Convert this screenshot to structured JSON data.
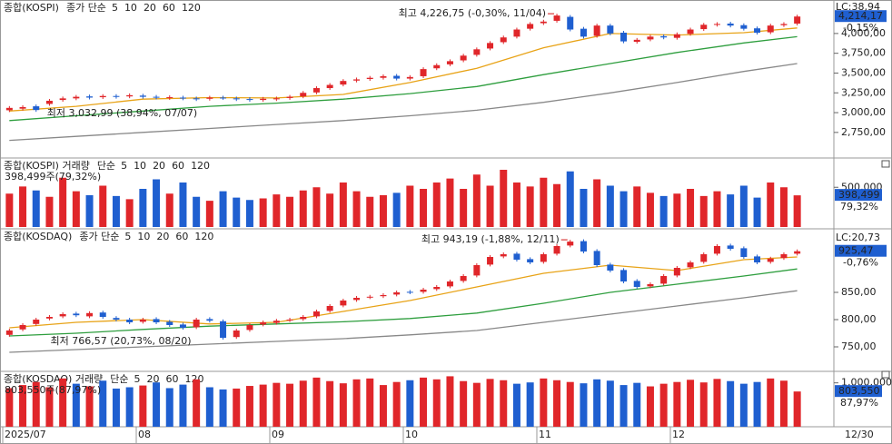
{
  "chart_data": [
    {
      "type": "candlestick",
      "title": "종합(KOSPI)",
      "subtitle": "종가 단순",
      "ma": [
        {
          "name": "5",
          "color": "#c000c0"
        },
        {
          "name": "10",
          "color": "#1a1a8c"
        },
        {
          "name": "20",
          "color": "#e8a317",
          "x": [
            0,
            5,
            10,
            15,
            20,
            25,
            30,
            35,
            40,
            45,
            50,
            55,
            59
          ],
          "values": [
            3020,
            3080,
            3170,
            3190,
            3185,
            3230,
            3380,
            3560,
            3820,
            4000,
            3980,
            4010,
            4070
          ]
        },
        {
          "name": "60",
          "color": "#2e9e3e",
          "x": [
            0,
            5,
            10,
            15,
            20,
            25,
            30,
            35,
            40,
            45,
            50,
            55,
            59
          ],
          "values": [
            2900,
            2960,
            3020,
            3080,
            3120,
            3170,
            3240,
            3330,
            3480,
            3620,
            3760,
            3880,
            3960
          ]
        },
        {
          "name": "120",
          "color": "#888888",
          "x": [
            0,
            5,
            10,
            15,
            20,
            25,
            30,
            35,
            40,
            45,
            50,
            55,
            59
          ],
          "values": [
            2650,
            2700,
            2750,
            2800,
            2850,
            2900,
            2960,
            3030,
            3130,
            3250,
            3380,
            3520,
            3620
          ]
        }
      ],
      "open": [
        3030,
        3050,
        3080,
        3110,
        3160,
        3180,
        3205,
        3195,
        3210,
        3205,
        3215,
        3200,
        3185,
        3190,
        3180,
        3175,
        3190,
        3180,
        3172,
        3160,
        3170,
        3185,
        3205,
        3255,
        3310,
        3355,
        3405,
        3425,
        3440,
        3465,
        3430,
        3460,
        3560,
        3610,
        3660,
        3730,
        3810,
        3890,
        3960,
        4060,
        4130,
        4160,
        4210,
        4060,
        3970,
        4100,
        4010,
        3895,
        3925,
        3965,
        3945,
        3995,
        4055,
        4110,
        4125,
        4105,
        4065,
        4015,
        4105,
        4125
      ],
      "close": [
        3060,
        3070,
        3032.99,
        3150,
        3180,
        3200,
        3190,
        3210,
        3200,
        3220,
        3200,
        3190,
        3195,
        3180,
        3170,
        3190,
        3185,
        3170,
        3160,
        3175,
        3180,
        3200,
        3250,
        3310,
        3350,
        3400,
        3420,
        3440,
        3460,
        3430,
        3450,
        3550,
        3600,
        3650,
        3720,
        3800,
        3880,
        3950,
        4050,
        4120,
        4150,
        4226.75,
        4050,
        3960,
        4100,
        4000,
        3900,
        3920,
        3960,
        3950,
        3990,
        4050,
        4110,
        4120,
        4100,
        4060,
        4010,
        4100,
        4120,
        4214.17
      ],
      "up_color": "#e0262a",
      "down_color": "#1f5fd0",
      "high_note": "최고 4,226,75 (-0,30%, 11/04)",
      "low_note": "최저 3,032,99 (38,94%, 07/07)",
      "last_label": "4,214,17",
      "change_label": "-0,15%",
      "lc_label": "LC:38,94",
      "ylim": [
        2450,
        4400
      ],
      "yticks": [
        {
          "value": 4000,
          "label": "4,000,00"
        },
        {
          "value": 3750,
          "label": "3,750,00"
        },
        {
          "value": 3500,
          "label": "3,500,00"
        },
        {
          "value": 3250,
          "label": "3,250,00"
        },
        {
          "value": 3000,
          "label": "3,000,00"
        },
        {
          "value": 2750,
          "label": "2,750,00"
        }
      ]
    },
    {
      "type": "bar",
      "title": "종합(KOSPI) 거래량",
      "subtitle": "단순",
      "ma": [
        {
          "name": "5",
          "color": "#c000c0"
        },
        {
          "name": "10",
          "color": "#1a1a8c"
        },
        {
          "name": "20",
          "color": "#e8a317"
        },
        {
          "name": "60",
          "color": "#2e9e3e"
        },
        {
          "name": "120",
          "color": "#888888"
        }
      ],
      "values": [
        420000,
        510000,
        460000,
        380000,
        620000,
        450000,
        400000,
        520000,
        390000,
        350000,
        480000,
        600000,
        420000,
        560000,
        380000,
        330000,
        450000,
        370000,
        340000,
        360000,
        410000,
        380000,
        460000,
        500000,
        420000,
        560000,
        450000,
        380000,
        400000,
        430000,
        520000,
        480000,
        560000,
        610000,
        480000,
        660000,
        520000,
        720000,
        560000,
        510000,
        620000,
        540000,
        700000,
        480000,
        600000,
        520000,
        450000,
        510000,
        430000,
        390000,
        420000,
        480000,
        390000,
        450000,
        410000,
        520000,
        370000,
        560000,
        500000,
        398499
      ],
      "current_note": "398,499주(79,32%)",
      "last_label": "398,499",
      "ratio_label": "79,32%",
      "ylim": [
        0,
        800000
      ],
      "yticks": [
        {
          "value": 500000,
          "label": "500,000"
        }
      ]
    },
    {
      "type": "candlestick",
      "title": "종합(KOSDAQ)",
      "subtitle": "종가 단순",
      "ma": [
        {
          "name": "5",
          "color": "#c000c0"
        },
        {
          "name": "10",
          "color": "#1a1a8c"
        },
        {
          "name": "20",
          "color": "#e8a317",
          "x": [
            0,
            5,
            10,
            15,
            20,
            25,
            30,
            35,
            40,
            45,
            50,
            55,
            59
          ],
          "values": [
            785,
            795,
            800,
            792,
            795,
            815,
            835,
            860,
            885,
            900,
            890,
            910,
            915
          ]
        },
        {
          "name": "60",
          "color": "#2e9e3e",
          "x": [
            0,
            5,
            10,
            15,
            20,
            25,
            30,
            35,
            40,
            45,
            50,
            55,
            59
          ],
          "values": [
            770,
            775,
            782,
            788,
            792,
            796,
            802,
            812,
            830,
            850,
            865,
            880,
            893
          ]
        },
        {
          "name": "120",
          "color": "#888888",
          "x": [
            0,
            5,
            10,
            15,
            20,
            25,
            30,
            35,
            40,
            45,
            50,
            55,
            59
          ],
          "values": [
            740,
            745,
            750,
            755,
            760,
            765,
            772,
            780,
            795,
            810,
            825,
            840,
            853
          ]
        }
      ],
      "open": [
        772,
        782,
        792,
        802,
        806,
        811,
        806,
        813,
        803,
        800,
        796,
        801,
        796,
        791,
        786,
        801,
        797,
        768,
        781,
        791,
        794,
        799,
        801,
        806,
        816,
        826,
        836,
        841,
        843,
        846,
        851,
        851,
        856,
        861,
        871,
        881,
        901,
        916,
        921,
        911,
        906,
        921,
        936,
        944,
        926,
        901,
        891,
        871,
        861,
        866,
        881,
        896,
        906,
        921,
        936,
        931,
        916,
        906,
        913,
        921
      ],
      "close": [
        780,
        790,
        800,
        805,
        810,
        808,
        812,
        805,
        800,
        795,
        800,
        795,
        790,
        785,
        800,
        798,
        766.57,
        780,
        790,
        795,
        798,
        800,
        805,
        815,
        825,
        835,
        840,
        842,
        845,
        850,
        850,
        855,
        860,
        870,
        880,
        900,
        915,
        920,
        910,
        905,
        920,
        935,
        943.19,
        925,
        900,
        890,
        870,
        860,
        865,
        880,
        895,
        905,
        920,
        935,
        930,
        915,
        905,
        912,
        920,
        925.47
      ],
      "up_color": "#e0262a",
      "down_color": "#1f5fd0",
      "high_note": "최고 943,19 (-1,88%, 12/11)",
      "low_note": "최저 766,57 (20,73%, 08/20)",
      "last_label": "925,47",
      "change_label": "-0,76%",
      "lc_label": "LC:20,73",
      "ylim": [
        710,
        960
      ],
      "yticks": [
        {
          "value": 850,
          "label": "850,00"
        },
        {
          "value": 800,
          "label": "800,00"
        },
        {
          "value": 750,
          "label": "750,00"
        }
      ]
    },
    {
      "type": "bar",
      "title": "종합(KOSDAQ) 거래량",
      "subtitle": "단순",
      "ma": [
        {
          "name": "5",
          "color": "#c000c0"
        },
        {
          "name": "20",
          "color": "#e8a317"
        },
        {
          "name": "60",
          "color": "#2e9e3e"
        },
        {
          "name": "120",
          "color": "#888888"
        }
      ],
      "values": [
        880000,
        950000,
        1020000,
        900000,
        1100000,
        980000,
        920000,
        1050000,
        870000,
        900000,
        940000,
        1010000,
        880000,
        960000,
        1080000,
        900000,
        850000,
        870000,
        930000,
        960000,
        1000000,
        980000,
        1050000,
        1120000,
        1040000,
        990000,
        1080000,
        1100000,
        950000,
        1020000,
        1060000,
        1120000,
        1080000,
        1150000,
        1040000,
        1000000,
        1090000,
        1060000,
        980000,
        1010000,
        1100000,
        1060000,
        1020000,
        990000,
        1080000,
        1050000,
        950000,
        1000000,
        920000,
        980000,
        1020000,
        1070000,
        1010000,
        1090000,
        1040000,
        980000,
        1020000,
        1100000,
        1050000,
        803550
      ],
      "current_note": "803,550주(87,97%)",
      "last_label": "803,550",
      "ratio_label": "87,97%",
      "ylim": [
        0,
        1200000
      ],
      "yticks": [
        {
          "value": 1000000,
          "label": "1,000,000"
        }
      ],
      "categories": [
        "2025/07",
        null,
        null,
        null,
        null,
        null,
        null,
        null,
        null,
        null,
        "08",
        null,
        null,
        null,
        null,
        null,
        null,
        null,
        null,
        null,
        "09",
        null,
        null,
        null,
        null,
        null,
        null,
        null,
        null,
        null,
        "10",
        null,
        null,
        null,
        null,
        null,
        null,
        null,
        null,
        null,
        "11",
        null,
        null,
        null,
        null,
        null,
        null,
        null,
        null,
        null,
        "12",
        null,
        null,
        null,
        null,
        null,
        null,
        null,
        null,
        null
      ],
      "end_label": "12/30"
    }
  ]
}
